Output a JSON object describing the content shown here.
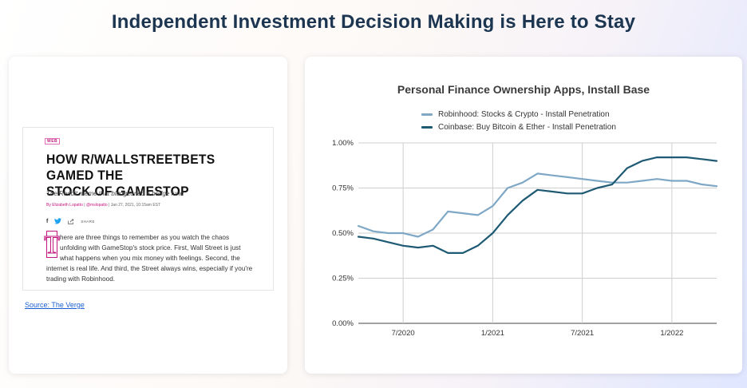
{
  "page": {
    "title": "Independent Investment Decision Making is Here to Stay"
  },
  "article": {
    "tag": "WEB",
    "headline_line1": "HOW R/WALLSTREETBETS GAMED THE",
    "headline_line2": "STOCK OF GAMESTOP",
    "subhead": "The Reddit meme that bludgeoned a hedge fund",
    "byline_author": "By Elizabeth Lopatto",
    "byline_sep1": " | ",
    "byline_handle": "@mslopatto",
    "byline_rest": " | Jan 27, 2021, 10:15am EST",
    "share_label": "SHARE",
    "dropcap": "T",
    "body_lines": [
      "here are three things to remember as you watch the chaos",
      "unfolding with GameStop's stock price. First, Wall Street is just",
      "what happens when you mix money with feelings. Second, the",
      "internet is real life. And third, the Street always wins, especially if you're",
      "trading with Robinhood."
    ],
    "source": "Source: The Verge"
  },
  "colors": {
    "robinhood": "#7fa8c6",
    "coinbase": "#1e5a73",
    "grid": "#cfcfcf",
    "axis": "#444444"
  },
  "chart_data": {
    "type": "line",
    "title": "Personal Finance Ownership Apps, Install Base",
    "xlabel": "",
    "ylabel": "",
    "y_tick_labels": [
      "0.00%",
      "0.25%",
      "0.50%",
      "0.75%",
      "1.00%"
    ],
    "x_tick_labels": [
      "7/2020",
      "1/2021",
      "7/2021",
      "1/2022"
    ],
    "ylim": [
      0,
      1.0
    ],
    "y_unit": "%",
    "grid": true,
    "legend_position": "top",
    "x": [
      "4/2020",
      "5/2020",
      "6/2020",
      "7/2020",
      "8/2020",
      "9/2020",
      "10/2020",
      "11/2020",
      "12/2020",
      "1/2021",
      "2/2021",
      "3/2021",
      "4/2021",
      "5/2021",
      "6/2021",
      "7/2021",
      "8/2021",
      "9/2021",
      "10/2021",
      "11/2021",
      "12/2021",
      "1/2022",
      "2/2022",
      "3/2022",
      "4/2022"
    ],
    "series": [
      {
        "name": "Robinhood: Stocks & Crypto - Install Penetration",
        "values": [
          0.54,
          0.51,
          0.5,
          0.5,
          0.48,
          0.52,
          0.62,
          0.61,
          0.6,
          0.65,
          0.75,
          0.78,
          0.83,
          0.82,
          0.81,
          0.8,
          0.79,
          0.78,
          0.78,
          0.79,
          0.8,
          0.79,
          0.79,
          0.77,
          0.76
        ]
      },
      {
        "name": "Coinbase: Buy Bitcoin & Ether - Install Penetration",
        "values": [
          0.48,
          0.47,
          0.45,
          0.43,
          0.42,
          0.43,
          0.39,
          0.39,
          0.43,
          0.5,
          0.6,
          0.68,
          0.74,
          0.73,
          0.72,
          0.72,
          0.75,
          0.77,
          0.86,
          0.9,
          0.92,
          0.92,
          0.92,
          0.91,
          0.9
        ]
      }
    ]
  }
}
